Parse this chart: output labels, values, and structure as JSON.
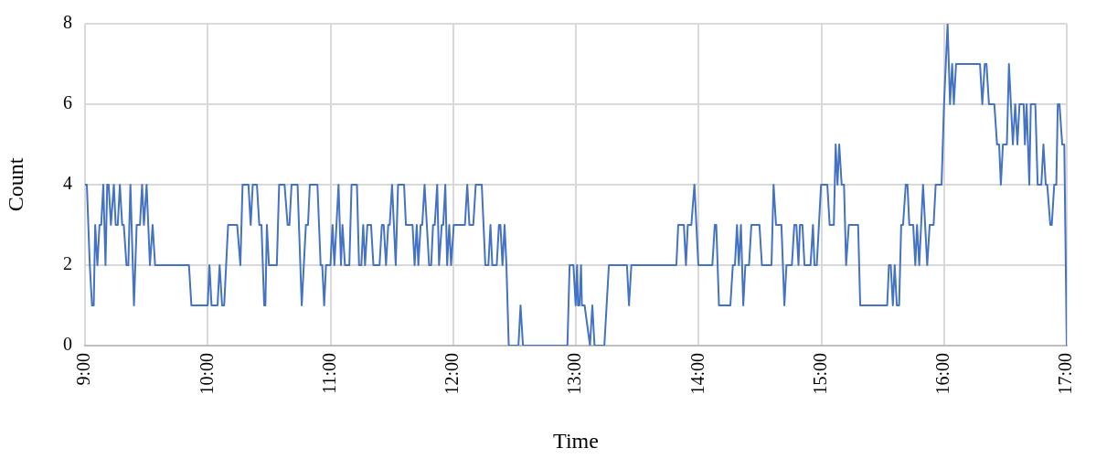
{
  "chart_data": {
    "type": "line",
    "xlabel": "Time",
    "ylabel": "Count",
    "grid": true,
    "marker": "none",
    "line_style": "solid",
    "color": "#4472c4",
    "xlim": [
      9,
      17
    ],
    "xticks": [
      {
        "value": 9,
        "label": "9:00"
      },
      {
        "value": 10,
        "label": "10:00"
      },
      {
        "value": 11,
        "label": "11:00"
      },
      {
        "value": 12,
        "label": "12:00"
      },
      {
        "value": 13,
        "label": "13:00"
      },
      {
        "value": 14,
        "label": "14:00"
      },
      {
        "value": 15,
        "label": "15:00"
      },
      {
        "value": 16,
        "label": "16:00"
      },
      {
        "value": 17,
        "label": "17:00"
      }
    ],
    "ylim": [
      0,
      8
    ],
    "yticks": [
      0,
      2,
      4,
      6,
      8
    ],
    "x": [
      9.0,
      9.015,
      9.039,
      9.057,
      9.071,
      9.083,
      9.101,
      9.118,
      9.132,
      9.149,
      9.167,
      9.181,
      9.193,
      9.211,
      9.235,
      9.25,
      9.267,
      9.284,
      9.303,
      9.316,
      9.338,
      9.353,
      9.37,
      9.399,
      9.421,
      9.448,
      9.465,
      9.48,
      9.502,
      9.529,
      9.551,
      9.571,
      9.847,
      9.867,
      10.0,
      10.014,
      10.031,
      10.08,
      10.097,
      10.117,
      10.134,
      10.166,
      10.24,
      10.266,
      10.284,
      10.332,
      10.35,
      10.367,
      10.401,
      10.42,
      10.438,
      10.46,
      10.47,
      10.482,
      10.499,
      10.563,
      10.582,
      10.626,
      10.651,
      10.666,
      10.683,
      10.732,
      10.766,
      10.8,
      10.817,
      10.832,
      10.894,
      10.92,
      10.933,
      10.949,
      10.964,
      11.0,
      11.017,
      11.032,
      11.066,
      11.086,
      11.098,
      11.118,
      11.154,
      11.172,
      11.216,
      11.233,
      11.252,
      11.267,
      11.282,
      11.301,
      11.331,
      11.35,
      11.4,
      11.419,
      11.434,
      11.453,
      11.471,
      11.483,
      11.502,
      11.532,
      11.551,
      11.6,
      11.615,
      11.669,
      11.686,
      11.703,
      11.716,
      11.735,
      11.748,
      11.767,
      11.804,
      11.821,
      11.836,
      11.85,
      11.87,
      11.885,
      11.907,
      11.919,
      11.936,
      11.951,
      11.968,
      11.983,
      12.005,
      12.096,
      12.115,
      12.132,
      12.164,
      12.184,
      12.233,
      12.262,
      12.287,
      12.304,
      12.319,
      12.355,
      12.373,
      12.385,
      12.402,
      12.419,
      12.434,
      12.453,
      12.532,
      12.549,
      12.569,
      12.931,
      12.949,
      12.98,
      12.998,
      13.01,
      13.017,
      13.029,
      13.042,
      13.049,
      13.071,
      13.115,
      13.134,
      13.152,
      13.232,
      13.269,
      13.416,
      13.433,
      13.452,
      13.819,
      13.834,
      13.88,
      13.897,
      13.912,
      13.941,
      13.966,
      13.998,
      14.112,
      14.132,
      14.144,
      14.166,
      14.259,
      14.279,
      14.296,
      14.313,
      14.328,
      14.345,
      14.364,
      14.381,
      14.411,
      14.43,
      14.496,
      14.516,
      14.594,
      14.611,
      14.631,
      14.675,
      14.699,
      14.716,
      14.76,
      14.78,
      14.797,
      14.814,
      14.826,
      14.846,
      14.863,
      14.912,
      14.932,
      14.944,
      14.963,
      14.998,
      15.049,
      15.068,
      15.102,
      15.117,
      15.132,
      15.146,
      15.166,
      15.185,
      15.202,
      15.224,
      15.3,
      15.317,
      15.537,
      15.551,
      15.566,
      15.583,
      15.598,
      15.615,
      15.634,
      15.651,
      15.666,
      15.688,
      15.702,
      15.717,
      15.749,
      15.766,
      15.78,
      15.798,
      15.829,
      15.863,
      15.883,
      15.915,
      15.932,
      15.98,
      16.0,
      16.029,
      16.049,
      16.066,
      16.08,
      16.098,
      16.293,
      16.312,
      16.332,
      16.346,
      16.366,
      16.41,
      16.432,
      16.449,
      16.463,
      16.48,
      16.512,
      16.529,
      16.561,
      16.58,
      16.598,
      16.615,
      16.649,
      16.659,
      16.673,
      16.695,
      16.707,
      16.744,
      16.763,
      16.793,
      16.81,
      16.829,
      16.841,
      16.866,
      16.878,
      16.898,
      16.915,
      16.927,
      16.941,
      16.963,
      16.98,
      17.0
    ],
    "values": [
      4,
      4,
      2,
      1,
      1,
      3,
      2,
      3,
      3,
      4,
      2,
      4,
      4,
      3,
      4,
      3,
      3,
      4,
      3,
      3,
      2,
      2,
      4,
      1,
      3,
      3,
      4,
      3,
      4,
      2,
      3,
      2,
      2,
      1,
      1,
      2,
      1,
      1,
      2,
      1,
      1,
      3,
      3,
      2,
      4,
      4,
      3,
      4,
      4,
      3,
      3,
      1,
      1,
      3,
      2,
      2,
      4,
      4,
      3,
      3,
      4,
      4,
      1,
      3,
      3,
      4,
      4,
      2,
      2,
      1,
      2,
      2,
      3,
      2,
      4,
      2,
      3,
      2,
      2,
      4,
      4,
      2,
      2,
      3,
      2,
      3,
      3,
      2,
      2,
      3,
      3,
      2,
      3,
      3,
      4,
      2,
      4,
      4,
      3,
      3,
      2,
      3,
      2,
      3,
      3,
      4,
      2,
      2,
      3,
      3,
      4,
      2,
      3,
      3,
      4,
      2,
      3,
      2,
      3,
      3,
      4,
      3,
      3,
      4,
      4,
      2,
      2,
      3,
      2,
      2,
      3,
      3,
      2,
      3,
      2,
      0,
      0,
      1,
      0,
      0,
      2,
      2,
      1,
      2,
      1,
      1,
      2,
      1,
      1,
      0,
      1,
      0,
      0,
      2,
      2,
      1,
      2,
      2,
      3,
      3,
      2,
      3,
      3,
      4,
      2,
      2,
      3,
      3,
      1,
      1,
      2,
      2,
      3,
      2,
      3,
      1,
      2,
      2,
      3,
      3,
      2,
      2,
      4,
      3,
      3,
      1,
      2,
      2,
      3,
      3,
      2,
      3,
      3,
      2,
      2,
      3,
      2,
      2,
      4,
      4,
      3,
      3,
      5,
      4,
      5,
      4,
      4,
      2,
      3,
      3,
      1,
      1,
      2,
      2,
      1,
      2,
      1,
      1,
      3,
      3,
      4,
      4,
      3,
      3,
      2,
      3,
      2,
      4,
      2,
      3,
      3,
      4,
      4,
      6,
      8,
      6,
      7,
      6,
      7,
      7,
      6,
      7,
      7,
      6,
      6,
      5,
      5,
      4,
      5,
      5,
      7,
      5,
      6,
      5,
      6,
      6,
      5,
      6,
      4,
      6,
      6,
      4,
      4,
      5,
      4,
      4,
      3,
      3,
      4,
      4,
      6,
      6,
      5,
      5,
      0
    ]
  }
}
